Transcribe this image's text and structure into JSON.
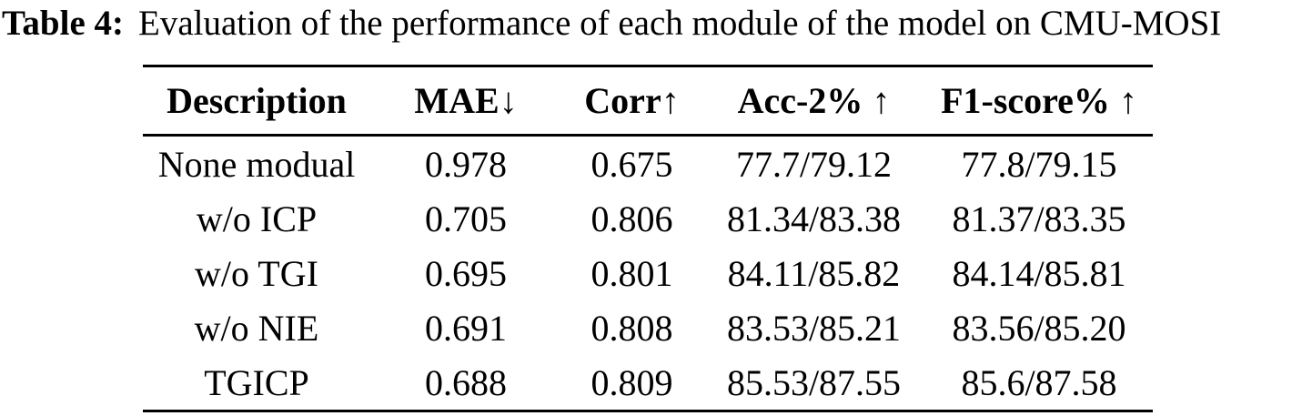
{
  "caption": {
    "label": "Table 4:",
    "text": "Evaluation of the performance of each module of the model on CMU-MOSI"
  },
  "table": {
    "columns": [
      "Description",
      "MAE↓",
      "Corr↑",
      "Acc-2% ↑",
      "F1-score% ↑"
    ],
    "rows": [
      [
        "None modual",
        "0.978",
        "0.675",
        "77.7/79.12",
        "77.8/79.15"
      ],
      [
        "w/o ICP",
        "0.705",
        "0.806",
        "81.34/83.38",
        "81.37/83.35"
      ],
      [
        "w/o TGI",
        "0.695",
        "0.801",
        "84.11/85.82",
        "84.14/85.81"
      ],
      [
        "w/o NIE",
        "0.691",
        "0.808",
        "83.53/85.21",
        "83.56/85.20"
      ],
      [
        "TGICP",
        "0.688",
        "0.809",
        "85.53/87.55",
        "85.6/87.58"
      ]
    ]
  },
  "chart_data": {
    "type": "table",
    "title": "Table 4: Evaluation of the performance of each module of the model on CMU-MOSI",
    "columns": [
      "Description",
      "MAE↓",
      "Corr↑",
      "Acc-2% ↑",
      "F1-score% ↑"
    ],
    "rows": [
      [
        "None modual",
        "0.978",
        "0.675",
        "77.7/79.12",
        "77.8/79.15"
      ],
      [
        "w/o ICP",
        "0.705",
        "0.806",
        "81.34/83.38",
        "81.37/83.35"
      ],
      [
        "w/o TGI",
        "0.695",
        "0.801",
        "84.11/85.82",
        "84.14/85.81"
      ],
      [
        "w/o NIE",
        "0.691",
        "0.808",
        "83.53/85.21",
        "83.56/85.20"
      ],
      [
        "TGICP",
        "0.688",
        "0.809",
        "85.53/87.55",
        "85.6/87.58"
      ]
    ]
  },
  "colors": {
    "text": "#000000",
    "background": "#ffffff",
    "rule": "#000000"
  }
}
